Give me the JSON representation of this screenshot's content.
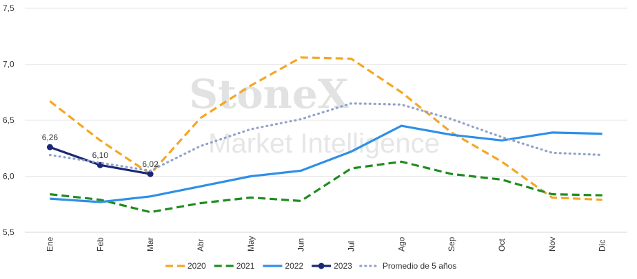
{
  "watermark": {
    "brand": "StoneX",
    "subtitle": "Market Intelligence"
  },
  "chart_data": {
    "type": "line",
    "title": "",
    "xlabel": "",
    "ylabel": "",
    "categories": [
      "Ene",
      "Feb",
      "Mar",
      "Abr",
      "May",
      "Jun",
      "Jul",
      "Ago",
      "Sep",
      "Oct",
      "Nov",
      "Dic"
    ],
    "ylim": [
      5.5,
      7.5
    ],
    "yticks": [
      "5,5",
      "6,0",
      "6,5",
      "7,0",
      "7,5"
    ],
    "ytick_values": [
      5.5,
      6.0,
      6.5,
      7.0,
      7.5
    ],
    "grid": "horizontal",
    "legend_position": "bottom",
    "series": [
      {
        "name": "2020",
        "color": "#F5A623",
        "style": "dashed",
        "values": [
          6.67,
          6.32,
          6.02,
          6.52,
          6.81,
          7.06,
          7.05,
          6.75,
          6.39,
          6.13,
          5.81,
          5.79
        ]
      },
      {
        "name": "2021",
        "color": "#1E8C1E",
        "style": "dashed",
        "values": [
          5.84,
          5.79,
          5.68,
          5.76,
          5.81,
          5.78,
          6.07,
          6.13,
          6.02,
          5.97,
          5.84,
          5.83
        ]
      },
      {
        "name": "2022",
        "color": "#2E8FE8",
        "style": "solid",
        "values": [
          5.8,
          5.77,
          5.82,
          5.91,
          6.0,
          6.05,
          6.22,
          6.45,
          6.37,
          6.32,
          6.39,
          6.38
        ]
      },
      {
        "name": "2023",
        "color": "#1C2775",
        "style": "solid-markers",
        "values": [
          6.26,
          6.1,
          6.02,
          null,
          null,
          null,
          null,
          null,
          null,
          null,
          null,
          null
        ],
        "labels": [
          "6,26",
          "6,10",
          "6,02"
        ]
      },
      {
        "name": "Promedio de 5 años",
        "color": "#8FA3C8",
        "style": "dotted",
        "values": [
          6.19,
          6.12,
          6.05,
          6.27,
          6.42,
          6.51,
          6.65,
          6.64,
          6.51,
          6.35,
          6.21,
          6.19
        ]
      }
    ]
  }
}
